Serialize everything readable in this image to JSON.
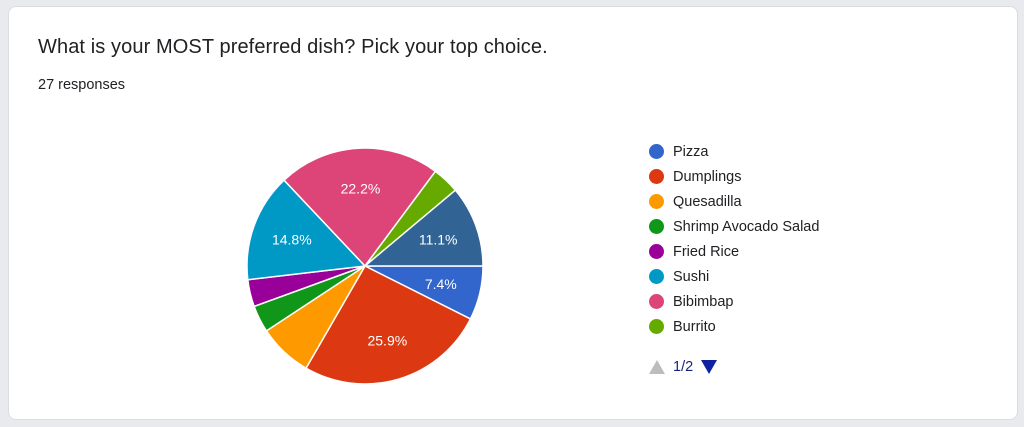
{
  "question": {
    "title": "What is your MOST preferred dish? Pick your top choice.",
    "responses": "27 responses"
  },
  "chart_data": {
    "type": "pie",
    "total_responses": 27,
    "slices": [
      {
        "label": "Pizza",
        "count": 2,
        "percent": 7.4,
        "display": "7.4%",
        "color": "#3366cc"
      },
      {
        "label": "Dumplings",
        "count": 7,
        "percent": 25.9,
        "display": "25.9%",
        "color": "#dc3912"
      },
      {
        "label": "Quesadilla",
        "count": 2,
        "percent": 7.4,
        "display": "",
        "color": "#ff9900"
      },
      {
        "label": "Shrimp Avocado Salad",
        "count": 1,
        "percent": 3.7,
        "display": "",
        "color": "#109618"
      },
      {
        "label": "Fried Rice",
        "count": 1,
        "percent": 3.7,
        "display": "",
        "color": "#990099"
      },
      {
        "label": "Sushi",
        "count": 4,
        "percent": 14.8,
        "display": "14.8%",
        "color": "#0099c6"
      },
      {
        "label": "Bibimbap",
        "count": 6,
        "percent": 22.2,
        "display": "22.2%",
        "color": "#dd4477"
      },
      {
        "label": "Burrito",
        "count": 1,
        "percent": 3.7,
        "display": "",
        "color": "#66aa00"
      },
      {
        "label": "",
        "count": 3,
        "percent": 11.1,
        "display": "11.1%",
        "color": "#316395"
      }
    ],
    "legend_visible_count": 8,
    "legend_position": "right"
  },
  "pager": {
    "text": "1/2",
    "prev_icon": "triangle-up-icon",
    "next_icon": "triangle-down-icon"
  }
}
